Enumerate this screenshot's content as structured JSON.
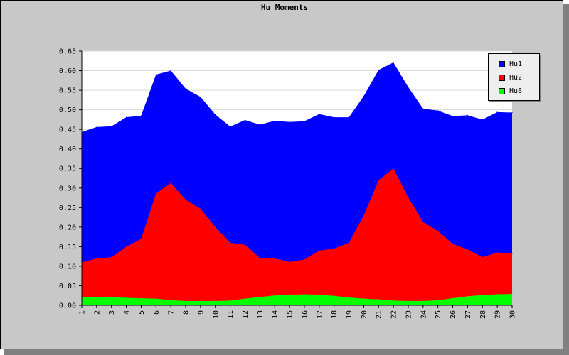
{
  "chart_data": {
    "type": "area",
    "stacked": false,
    "title": "Hu Moments",
    "categories": [
      1,
      2,
      3,
      4,
      5,
      6,
      7,
      8,
      9,
      10,
      11,
      12,
      13,
      14,
      15,
      16,
      17,
      18,
      19,
      20,
      21,
      22,
      23,
      24,
      25,
      26,
      27,
      28,
      29,
      30
    ],
    "ylim": [
      0,
      0.65
    ],
    "yticks": [
      "0.00",
      "0.05",
      "0.10",
      "0.15",
      "0.20",
      "0.25",
      "0.30",
      "0.35",
      "0.40",
      "0.45",
      "0.50",
      "0.55",
      "0.60",
      "0.65"
    ],
    "grid": true,
    "legend_position": "top-right",
    "series": [
      {
        "name": "Hu1",
        "color": "#0000ff",
        "values": [
          0.443,
          0.456,
          0.458,
          0.481,
          0.485,
          0.59,
          0.6,
          0.554,
          0.533,
          0.488,
          0.457,
          0.474,
          0.462,
          0.472,
          0.469,
          0.471,
          0.489,
          0.481,
          0.481,
          0.535,
          0.602,
          0.621,
          0.558,
          0.503,
          0.498,
          0.484,
          0.486,
          0.475,
          0.494,
          0.493
        ]
      },
      {
        "name": "Hu2",
        "color": "#ff0000",
        "values": [
          0.11,
          0.12,
          0.123,
          0.15,
          0.17,
          0.286,
          0.313,
          0.27,
          0.247,
          0.2,
          0.16,
          0.155,
          0.121,
          0.12,
          0.111,
          0.117,
          0.14,
          0.145,
          0.16,
          0.23,
          0.32,
          0.35,
          0.276,
          0.213,
          0.19,
          0.157,
          0.143,
          0.123,
          0.135,
          0.132
        ]
      },
      {
        "name": "Hu8",
        "color": "#00ff00",
        "values": [
          0.02,
          0.021,
          0.021,
          0.019,
          0.018,
          0.017,
          0.013,
          0.011,
          0.011,
          0.011,
          0.012,
          0.017,
          0.021,
          0.025,
          0.027,
          0.028,
          0.027,
          0.024,
          0.02,
          0.017,
          0.015,
          0.012,
          0.011,
          0.011,
          0.013,
          0.018,
          0.023,
          0.026,
          0.028,
          0.029
        ]
      }
    ]
  }
}
